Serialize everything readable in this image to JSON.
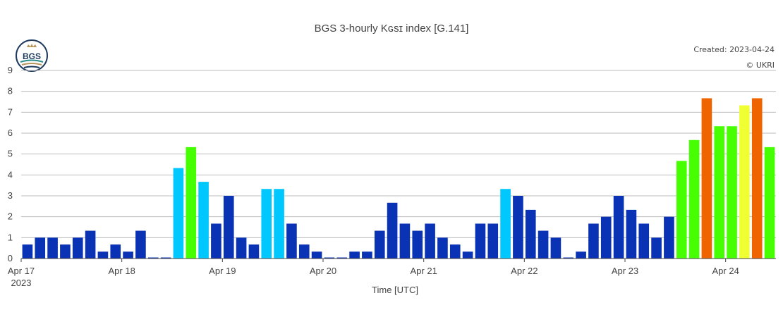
{
  "header": {
    "title": "BGS 3-hourly Kɢsɪ index [G.141]",
    "created": "Created: 2023-04-24",
    "copyright": "© UKRI",
    "logo_text": "BGS"
  },
  "colors": {
    "quiet": "#0a32b4",
    "cyan": "#00c8ff",
    "green": "#46ff00",
    "yellow": "#f0ff32",
    "orange": "#f06400",
    "grid": "#bdbdbd",
    "logo_navy": "#1e3a5f",
    "logo_teal": "#2a8c8c",
    "logo_gold": "#b8955a"
  },
  "chart_data": {
    "type": "bar",
    "title": "BGS 3-hourly Kɢsɪ index [G.141]",
    "xlabel": "Time [UTC]",
    "ylabel": "",
    "ylim": [
      0,
      9
    ],
    "yticks": [
      "0",
      "1",
      "2",
      "3",
      "4",
      "5",
      "6",
      "7",
      "8",
      "9"
    ],
    "xtick_labels": [
      "Apr 17",
      "Apr 18",
      "Apr 19",
      "Apr 20",
      "Apr 21",
      "Apr 22",
      "Apr 23",
      "Apr 24"
    ],
    "xtick_year": "2023",
    "bars_per_day": 8,
    "grid": true,
    "values": [
      0.67,
      1.0,
      1.0,
      0.67,
      1.0,
      1.33,
      0.33,
      0.67,
      0.33,
      1.33,
      0.05,
      0.05,
      4.33,
      5.33,
      3.67,
      1.67,
      3.0,
      1.0,
      0.67,
      3.33,
      3.33,
      1.67,
      0.67,
      0.33,
      0.05,
      0.05,
      0.33,
      0.33,
      1.33,
      2.67,
      1.67,
      1.33,
      1.67,
      1.0,
      0.67,
      0.33,
      1.67,
      1.67,
      3.33,
      3.0,
      2.33,
      1.33,
      1.0,
      0.05,
      0.33,
      1.67,
      2.0,
      3.0,
      2.33,
      1.67,
      1.0,
      2.0,
      4.67,
      5.67,
      7.67,
      6.33,
      6.33,
      7.33,
      7.67,
      5.33
    ],
    "bar_colors": [
      "quiet",
      "quiet",
      "quiet",
      "quiet",
      "quiet",
      "quiet",
      "quiet",
      "quiet",
      "quiet",
      "quiet",
      "quiet",
      "quiet",
      "cyan",
      "green",
      "cyan",
      "quiet",
      "quiet",
      "quiet",
      "quiet",
      "cyan",
      "cyan",
      "quiet",
      "quiet",
      "quiet",
      "quiet",
      "quiet",
      "quiet",
      "quiet",
      "quiet",
      "quiet",
      "quiet",
      "quiet",
      "quiet",
      "quiet",
      "quiet",
      "quiet",
      "quiet",
      "quiet",
      "cyan",
      "quiet",
      "quiet",
      "quiet",
      "quiet",
      "quiet",
      "quiet",
      "quiet",
      "quiet",
      "quiet",
      "quiet",
      "quiet",
      "quiet",
      "quiet",
      "green",
      "green",
      "orange",
      "green",
      "green",
      "yellow",
      "orange",
      "green"
    ]
  }
}
